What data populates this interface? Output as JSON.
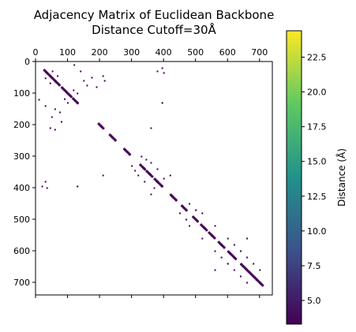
{
  "chart_data": {
    "type": "heatmap",
    "title": "Adjacency Matrix of Euclidean Backbone",
    "subtitle": "Distance Cutoff=30Å",
    "xlabel": "",
    "ylabel": "",
    "xlim": [
      0,
      740
    ],
    "ylim": [
      0,
      740
    ],
    "x_ticks": [
      0,
      100,
      200,
      300,
      400,
      500,
      600,
      700
    ],
    "y_ticks": [
      0,
      100,
      200,
      300,
      400,
      500,
      600,
      700
    ],
    "x_axis_position": "top",
    "y_axis_inverted": true,
    "grid": false,
    "colorbar": {
      "label": "Distance (Å)",
      "range": [
        3.3,
        24.4
      ],
      "ticks": [
        5.0,
        7.5,
        10.0,
        12.5,
        15.0,
        17.5,
        20.0,
        22.5
      ],
      "tick_labels": [
        "5.0",
        "7.5",
        "10.0",
        "12.5",
        "15.0",
        "17.5",
        "20.0",
        "22.5"
      ],
      "colormap": "viridis",
      "colors": [
        "#440154",
        "#3b528b",
        "#21918c",
        "#5ec962",
        "#fde725"
      ]
    },
    "diagonal_segments": [
      {
        "start": 25,
        "end": 75,
        "value": 3.8
      },
      {
        "start": 80,
        "end": 110,
        "value": 3.8
      },
      {
        "start": 115,
        "end": 130,
        "value": 3.8
      },
      {
        "start": 195,
        "end": 210,
        "value": 3.8
      },
      {
        "start": 230,
        "end": 248,
        "value": 3.8
      },
      {
        "start": 275,
        "end": 295,
        "value": 3.8
      },
      {
        "start": 325,
        "end": 340,
        "value": 3.8
      },
      {
        "start": 345,
        "end": 365,
        "value": 3.8
      },
      {
        "start": 370,
        "end": 395,
        "value": 3.8
      },
      {
        "start": 420,
        "end": 440,
        "value": 3.8
      },
      {
        "start": 455,
        "end": 470,
        "value": 3.8
      },
      {
        "start": 490,
        "end": 505,
        "value": 3.8
      },
      {
        "start": 515,
        "end": 535,
        "value": 3.8
      },
      {
        "start": 540,
        "end": 560,
        "value": 3.8
      },
      {
        "start": 570,
        "end": 590,
        "value": 3.8
      },
      {
        "start": 600,
        "end": 625,
        "value": 3.8
      },
      {
        "start": 640,
        "end": 690,
        "value": 3.8
      },
      {
        "start": 690,
        "end": 710,
        "value": 3.8
      }
    ],
    "contacts": [
      {
        "row": 30,
        "col": 52,
        "value": 4.5
      },
      {
        "row": 45,
        "col": 68,
        "value": 5.0
      },
      {
        "row": 90,
        "col": 118,
        "value": 4.5
      },
      {
        "row": 100,
        "col": 130,
        "value": 5.0
      },
      {
        "row": 120,
        "col": 10,
        "value": 4.5
      },
      {
        "row": 140,
        "col": 30,
        "value": 4.5
      },
      {
        "row": 150,
        "col": 60,
        "value": 5.0
      },
      {
        "row": 160,
        "col": 75,
        "value": 4.5
      },
      {
        "row": 175,
        "col": 50,
        "value": 4.5
      },
      {
        "row": 190,
        "col": 80,
        "value": 5.0
      },
      {
        "row": 210,
        "col": 45,
        "value": 4.5
      },
      {
        "row": 215,
        "col": 60,
        "value": 4.5
      },
      {
        "row": 300,
        "col": 330,
        "value": 4.5
      },
      {
        "row": 310,
        "col": 345,
        "value": 5.0
      },
      {
        "row": 320,
        "col": 360,
        "value": 4.5
      },
      {
        "row": 340,
        "col": 380,
        "value": 4.5
      },
      {
        "row": 360,
        "col": 210,
        "value": 5.0
      },
      {
        "row": 370,
        "col": 400,
        "value": 4.5
      },
      {
        "row": 395,
        "col": 20,
        "value": 4.5
      },
      {
        "row": 395,
        "col": 130,
        "value": 5.0
      },
      {
        "row": 420,
        "col": 360,
        "value": 4.5
      },
      {
        "row": 450,
        "col": 480,
        "value": 4.5
      },
      {
        "row": 470,
        "col": 500,
        "value": 5.0
      },
      {
        "row": 480,
        "col": 520,
        "value": 4.5
      },
      {
        "row": 500,
        "col": 470,
        "value": 4.5
      },
      {
        "row": 520,
        "col": 560,
        "value": 5.0
      },
      {
        "row": 560,
        "col": 600,
        "value": 4.5
      },
      {
        "row": 580,
        "col": 620,
        "value": 4.5
      },
      {
        "row": 600,
        "col": 640,
        "value": 5.0
      },
      {
        "row": 620,
        "col": 660,
        "value": 4.5
      },
      {
        "row": 640,
        "col": 600,
        "value": 4.5
      },
      {
        "row": 660,
        "col": 560,
        "value": 4.5
      },
      {
        "row": 680,
        "col": 640,
        "value": 5.0
      },
      {
        "row": 700,
        "col": 660,
        "value": 4.5
      },
      {
        "row": 30,
        "col": 380,
        "value": 5.0
      },
      {
        "row": 35,
        "col": 400,
        "value": 4.5
      },
      {
        "row": 130,
        "col": 395,
        "value": 4.5
      }
    ]
  }
}
